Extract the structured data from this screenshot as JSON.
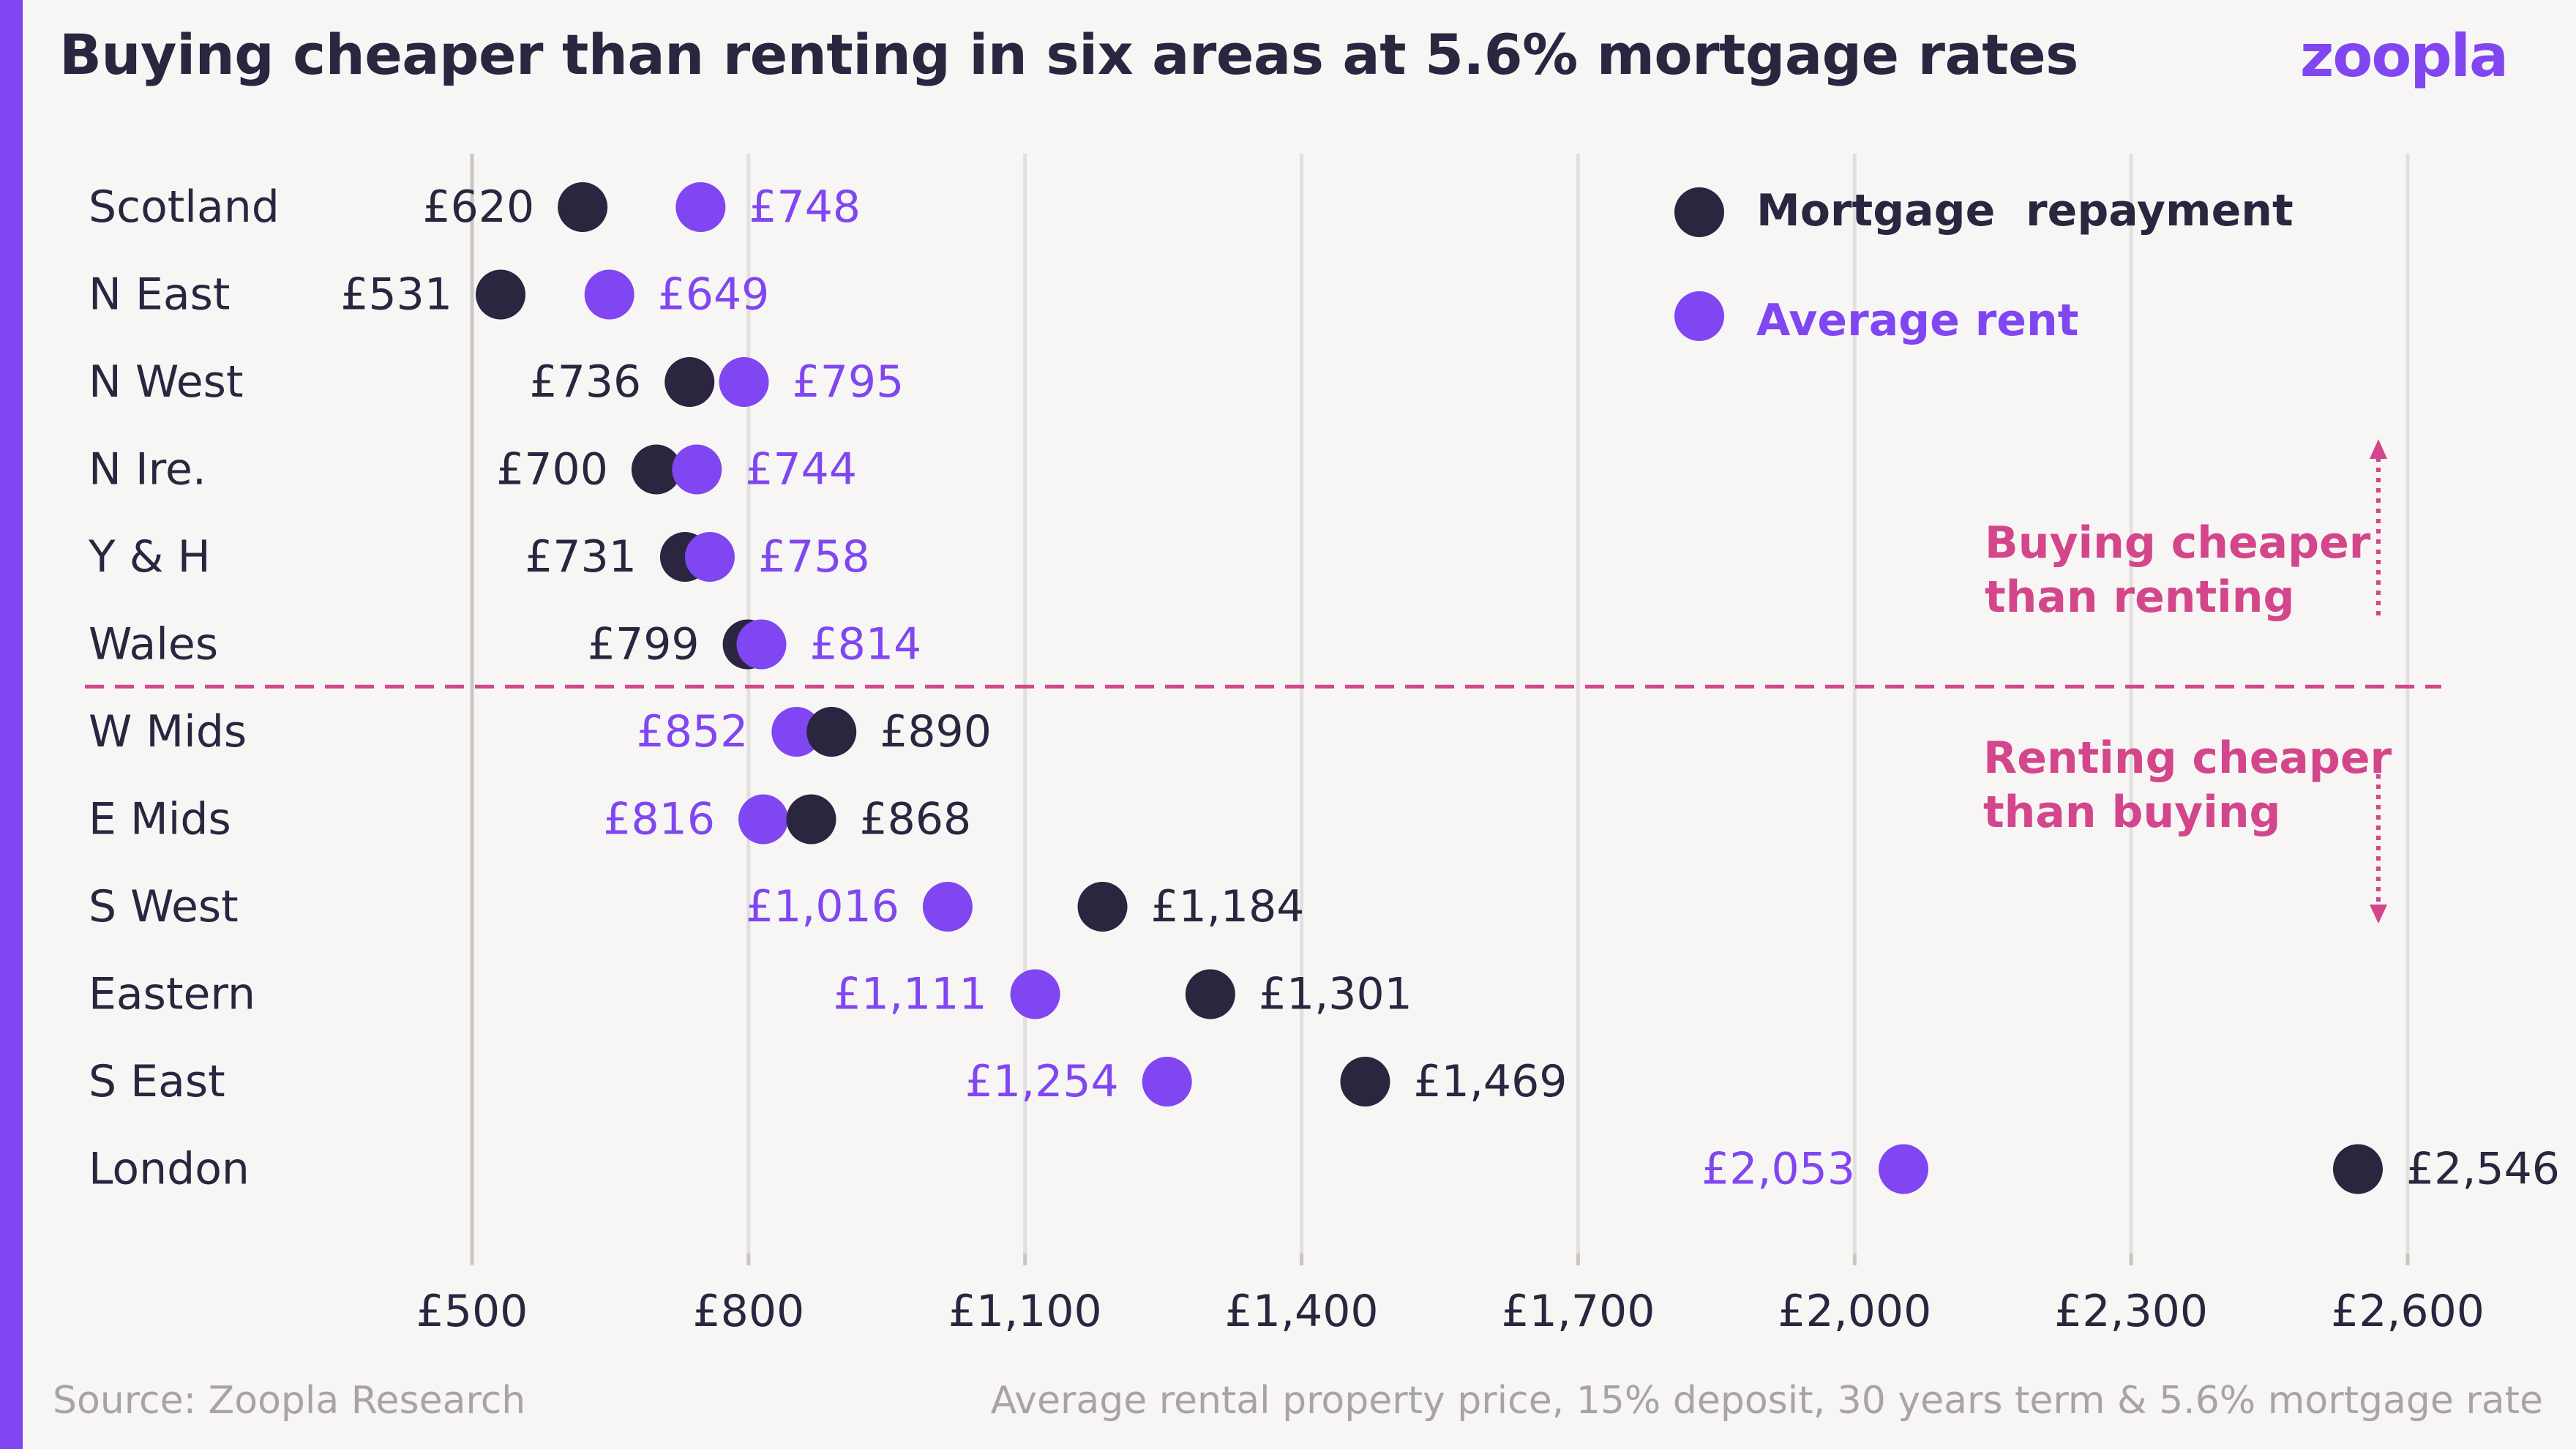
{
  "title": "Buying cheaper than renting in six areas at 5.6% mortgage rates",
  "logo": "zoopla",
  "source": "Source: Zoopla Research",
  "footnote": "Average rental property price, 15% deposit, 30 years term & 5.6% mortgage rate",
  "colors": {
    "mortgage": "#2b2540",
    "rent": "#8046f1",
    "annotation": "#d3468b",
    "grid": "#e2e0de",
    "axis": "#c8c5c2",
    "text": "#2b2540"
  },
  "chart_data": {
    "type": "scatter",
    "title": "Buying cheaper than renting in six areas at 5.6% mortgage rates",
    "categories": [
      "Scotland",
      "N East",
      "N West",
      "N Ire.",
      "Y & H",
      "Wales",
      "W Mids",
      "E Mids",
      "S West",
      "Eastern",
      "S East",
      "London"
    ],
    "series": [
      {
        "name": "Mortgage  repayment",
        "values": [
          620,
          531,
          736,
          700,
          731,
          799,
          890,
          868,
          1184,
          1301,
          1469,
          2546
        ],
        "labels": [
          "£620",
          "£531",
          "£736",
          "£700",
          "£731",
          "£799",
          "£890",
          "£868",
          "£1,184",
          "£1,301",
          "£1,469",
          "£2,546"
        ]
      },
      {
        "name": "Average rent",
        "values": [
          748,
          649,
          795,
          744,
          758,
          814,
          852,
          816,
          1016,
          1111,
          1254,
          2053
        ],
        "labels": [
          "£748",
          "£649",
          "£795",
          "£744",
          "£758",
          "£814",
          "£852",
          "£816",
          "£1,016",
          "£1,111",
          "£1,254",
          "£2,053"
        ]
      }
    ],
    "xlim": [
      500,
      2600
    ],
    "xticks": [
      500,
      800,
      1100,
      1400,
      1700,
      2000,
      2300,
      2600
    ],
    "xtick_labels": [
      "£500",
      "£800",
      "£1,100",
      "£1,400",
      "£1,700",
      "£2,000",
      "£2,300",
      "£2,600"
    ],
    "grid": true,
    "legend_position": "top-right",
    "annotations": {
      "above": [
        "Buying cheaper",
        "than renting"
      ],
      "below": [
        "Renting cheaper",
        "than buying"
      ]
    },
    "divider_after_category": "Wales"
  }
}
